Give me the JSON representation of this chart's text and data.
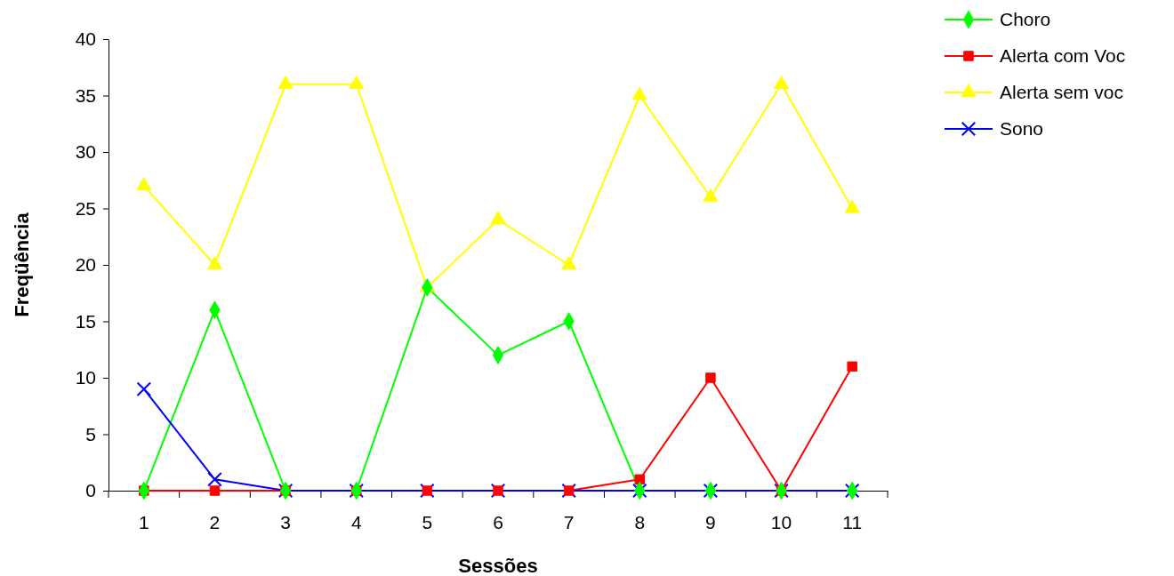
{
  "chart_data": {
    "type": "line",
    "xlabel": "Sessões",
    "ylabel": "Freqüência",
    "categories": [
      "1",
      "2",
      "3",
      "4",
      "5",
      "6",
      "7",
      "8",
      "9",
      "10",
      "11"
    ],
    "ylim": [
      0,
      40
    ],
    "yticks": [
      0,
      5,
      10,
      15,
      20,
      25,
      30,
      35,
      40
    ],
    "grid": false,
    "legend": "top right",
    "series": [
      {
        "name": "Choro",
        "color": "#00ff00",
        "marker": "diamond",
        "values": [
          0,
          16,
          0,
          0,
          18,
          12,
          15,
          0,
          0,
          0,
          0
        ]
      },
      {
        "name": "Alerta com Voc",
        "color": "#ff0000",
        "marker": "square",
        "values": [
          0,
          0,
          0,
          0,
          0,
          0,
          0,
          1,
          10,
          0,
          11
        ]
      },
      {
        "name": "Alerta sem voc",
        "color": "#ffff00",
        "marker": "triangle",
        "values": [
          27,
          20,
          36,
          36,
          18,
          24,
          20,
          35,
          26,
          36,
          25
        ]
      },
      {
        "name": "Sono",
        "color": "#0000ff",
        "marker": "cross",
        "values": [
          9,
          1,
          0,
          0,
          0,
          0,
          0,
          0,
          0,
          0,
          0
        ]
      }
    ]
  }
}
